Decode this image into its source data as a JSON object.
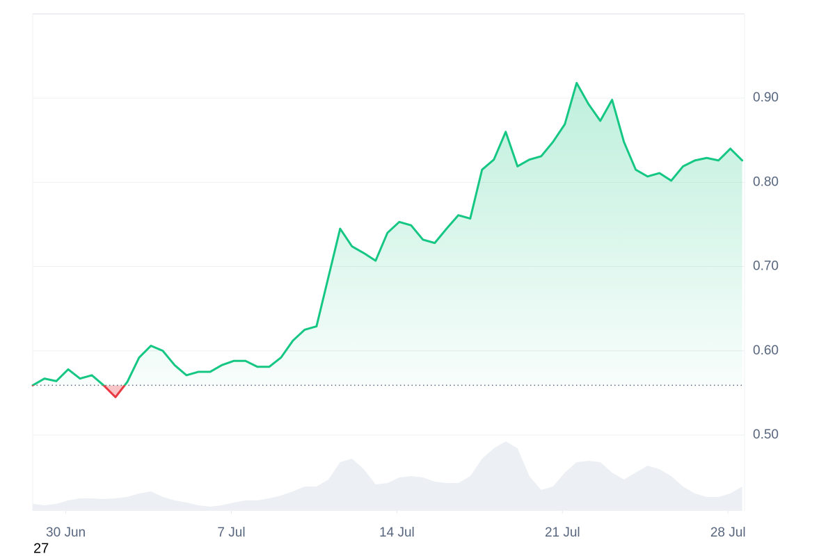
{
  "chart_data": {
    "type": "line",
    "x": [
      -1.4,
      -0.9,
      -0.4,
      0.1,
      0.6,
      1.1,
      1.6,
      2.1,
      2.6,
      3.1,
      3.6,
      4.1,
      4.6,
      5.1,
      5.6,
      6.1,
      6.6,
      7.1,
      7.6,
      8.1,
      8.6,
      9.1,
      9.6,
      10.1,
      10.6,
      11.1,
      11.6,
      12.1,
      12.6,
      13.1,
      13.6,
      14.1,
      14.6,
      15.1,
      15.6,
      16.1,
      16.6,
      17.1,
      17.6,
      18.1,
      18.6,
      19.1,
      19.6,
      20.1,
      20.6,
      21.1,
      21.6,
      22.1,
      22.6,
      23.1,
      23.6,
      24.1,
      24.6,
      25.1,
      25.6,
      26.1,
      26.6,
      27.1,
      27.6,
      28.1,
      28.6
    ],
    "series": [
      {
        "color": "#16c784",
        "values": [
          0.559,
          0.567,
          0.564,
          0.578,
          0.567,
          0.571,
          0.559,
          0.545,
          0.563,
          0.592,
          0.606,
          0.6,
          0.583,
          0.571,
          0.575,
          0.575,
          0.583,
          0.588,
          0.588,
          0.581,
          0.581,
          0.592,
          0.612,
          0.625,
          0.629,
          0.687,
          0.745,
          0.724,
          0.716,
          0.707,
          0.74,
          0.753,
          0.749,
          0.732,
          0.728,
          0.745,
          0.761,
          0.757,
          0.815,
          0.827,
          0.86,
          0.819,
          0.827,
          0.831,
          0.848,
          0.869,
          0.918,
          0.893,
          0.873,
          0.898,
          0.848,
          0.815,
          0.807,
          0.811,
          0.802,
          0.819,
          0.826,
          0.829,
          0.826,
          0.84,
          0.826
        ]
      }
    ],
    "below_color": "#ea3943",
    "baseline": 0.559,
    "volume": {
      "color": "#eceff3",
      "values": [
        10,
        8,
        10,
        15,
        18,
        18,
        17,
        18,
        20,
        25,
        28,
        20,
        15,
        12,
        8,
        6,
        8,
        12,
        15,
        15,
        18,
        22,
        28,
        35,
        35,
        45,
        70,
        75,
        60,
        38,
        40,
        48,
        50,
        48,
        42,
        40,
        40,
        50,
        75,
        90,
        100,
        90,
        50,
        30,
        35,
        55,
        70,
        72,
        70,
        55,
        45,
        55,
        65,
        60,
        50,
        35,
        25,
        20,
        20,
        25,
        35
      ]
    },
    "vlim": [
      0,
      100
    ],
    "xlim": [
      -1.4,
      28.7
    ],
    "ylim": [
      0.41,
      1.0
    ],
    "xticks": [
      {
        "value": 0,
        "label": "30 Jun"
      },
      {
        "value": 7,
        "label": "7 Jul"
      },
      {
        "value": 14,
        "label": "14 Jul"
      },
      {
        "value": 21,
        "label": "21 Jul"
      },
      {
        "value": 28,
        "label": "28 Jul"
      }
    ],
    "yticks": [
      {
        "value": 0.5,
        "label": "0.50"
      },
      {
        "value": 0.6,
        "label": "0.60"
      },
      {
        "value": 0.7,
        "label": "0.70"
      },
      {
        "value": 0.8,
        "label": "0.80"
      },
      {
        "value": 0.9,
        "label": "0.90"
      }
    ],
    "grid": true,
    "annotation": "27"
  }
}
